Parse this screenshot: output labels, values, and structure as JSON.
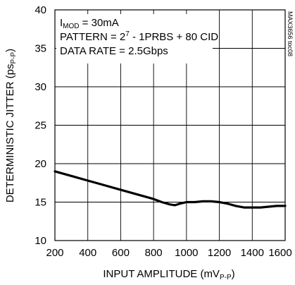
{
  "chart_data": {
    "type": "line",
    "xlabel": {
      "main": "INPUT AMPLITUDE (mV",
      "sub": "P-P",
      "end": ")"
    },
    "ylabel": {
      "main": "DETERMINISTIC JITTER (ps",
      "sub": "P-P",
      "end": ")"
    },
    "xlim": [
      200,
      1600
    ],
    "ylim": [
      10,
      40
    ],
    "x_ticks": [
      "200",
      "400",
      "600",
      "800",
      "1000",
      "1200",
      "1400",
      "1600"
    ],
    "y_ticks": [
      "10",
      "15",
      "20",
      "25",
      "30",
      "35",
      "40"
    ],
    "grid": true,
    "annotations": {
      "imod_pre": "I",
      "imod_sub": "MOD",
      "imod_post": " = 30mA",
      "pattern_pre": "PATTERN = 2",
      "pattern_sup": "7",
      "pattern_post": " - 1PRBS + 80 CID",
      "data_rate": "DATA RATE = 2.5Gbps"
    },
    "figure_code": "MAX3656 toc08",
    "series": [
      {
        "x": [
          200,
          300,
          400,
          500,
          600,
          700,
          800,
          850,
          900,
          930,
          960,
          1000,
          1050,
          1100,
          1150,
          1200,
          1250,
          1300,
          1350,
          1400,
          1450,
          1500,
          1550,
          1600
        ],
        "y": [
          19.0,
          18.4,
          17.8,
          17.2,
          16.6,
          16.0,
          15.4,
          15.0,
          14.7,
          14.6,
          14.8,
          15.0,
          15.0,
          15.1,
          15.1,
          15.0,
          14.8,
          14.5,
          14.3,
          14.3,
          14.3,
          14.4,
          14.5,
          14.5
        ]
      }
    ]
  }
}
